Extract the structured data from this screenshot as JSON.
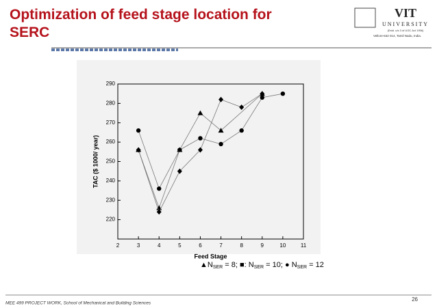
{
  "slide": {
    "title": "Optimization of feed stage location for SERC",
    "logo": {
      "name": "VIT",
      "subtitle": "UNIVERSITY",
      "line1": "(Estd. u/s 3 of UGC Act 1956)",
      "line2": "Vellore-632 014, Tamil Nadu, India."
    },
    "footer": "MEE 499 PROJECT WORK, School of Mechanical and Building Sciences",
    "page": "26"
  },
  "chart_data": {
    "type": "line",
    "x_label": "Feed Stage",
    "y_label": "TAC ($ 1000/ year)",
    "xlim": [
      2,
      11
    ],
    "xticks": [
      2,
      3,
      4,
      5,
      6,
      7,
      8,
      9,
      10,
      11
    ],
    "ylim": [
      210,
      290
    ],
    "yticks": [
      220,
      230,
      240,
      250,
      260,
      270,
      280,
      290
    ],
    "series": [
      {
        "marker": "triangle",
        "color": "#000000",
        "x": [
          3,
          4,
          5,
          6,
          7,
          9
        ],
        "values": [
          256,
          226,
          256,
          275,
          266,
          285
        ]
      },
      {
        "marker": "diamond",
        "color": "#000000",
        "x": [
          3,
          4,
          5,
          6,
          7,
          8,
          9
        ],
        "values": [
          256,
          224,
          245,
          256,
          282,
          278,
          285
        ]
      },
      {
        "marker": "circle",
        "color": "#000000",
        "x": [
          3,
          4,
          5,
          6,
          7,
          8,
          9,
          10
        ],
        "values": [
          266,
          236,
          256,
          262,
          259,
          266,
          283,
          285
        ]
      }
    ],
    "legend_text": [
      "▲N",
      "SER",
      " = 8; ■: N",
      "SER",
      " = 10; ● N",
      "SER",
      " = 12"
    ]
  }
}
